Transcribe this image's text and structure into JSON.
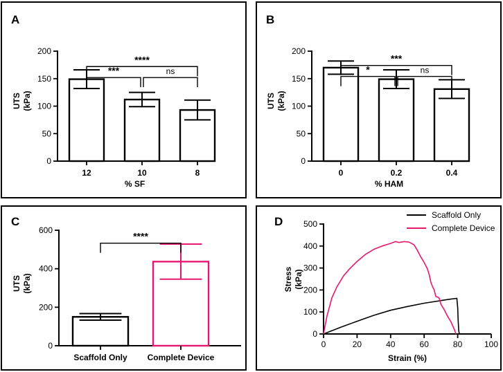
{
  "chart_data": [
    {
      "panel": "A",
      "type": "bar",
      "categories": [
        "12",
        "10",
        "8"
      ],
      "values": [
        149,
        112,
        93
      ],
      "errors": [
        17,
        13,
        18
      ],
      "xlabel": "% SF",
      "ylabel": [
        "UTS",
        "(kPa)"
      ],
      "ylim": [
        0,
        200
      ],
      "yticks": [
        0,
        50,
        100,
        150,
        200
      ],
      "color": "#000000",
      "significance": [
        {
          "from": 0,
          "to": 2,
          "label": "****",
          "y": 172
        },
        {
          "from": 0,
          "to": 1,
          "label": "***",
          "y": 152
        },
        {
          "from": 1,
          "to": 2,
          "label": "ns",
          "y": 152
        }
      ]
    },
    {
      "panel": "B",
      "type": "bar",
      "categories": [
        "0",
        "0.2",
        "0.4"
      ],
      "values": [
        170,
        149,
        131
      ],
      "errors": [
        12,
        17,
        17
      ],
      "xlabel": "% HAM",
      "ylabel": [
        "UTS",
        "(kPa)"
      ],
      "ylim": [
        0,
        200
      ],
      "yticks": [
        0,
        50,
        100,
        150,
        200
      ],
      "color": "#000000",
      "significance": [
        {
          "from": 0,
          "to": 2,
          "label": "***",
          "y": 174
        },
        {
          "from": 0,
          "to": 1,
          "label": "*",
          "y": 154
        },
        {
          "from": 1,
          "to": 2,
          "label": "ns",
          "y": 154
        }
      ]
    },
    {
      "panel": "C",
      "type": "bar",
      "categories": [
        "Scaffold Only",
        "Complete Device"
      ],
      "values": [
        150,
        437
      ],
      "errors": [
        17,
        91
      ],
      "colors": [
        "#000000",
        "#e6176f"
      ],
      "xlabel": "",
      "ylabel": [
        "UTS",
        "(kPa)"
      ],
      "ylim": [
        0,
        600
      ],
      "yticks": [
        0,
        200,
        400,
        600
      ],
      "significance": [
        {
          "from": 0,
          "to": 1,
          "label": "****",
          "y": 533
        }
      ]
    },
    {
      "panel": "D",
      "type": "line",
      "xlabel": "Strain (%)",
      "ylabel": [
        "Stress",
        "(kPa)"
      ],
      "xlim": [
        0,
        100
      ],
      "ylim": [
        0,
        500
      ],
      "xticks": [
        0,
        20,
        40,
        60,
        80,
        100
      ],
      "yticks": [
        0,
        100,
        200,
        300,
        400,
        500
      ],
      "legend_position": "top-right",
      "series": [
        {
          "name": "Scaffold Only",
          "color": "#000000",
          "x": [
            0,
            10,
            20,
            30,
            40,
            50,
            60,
            70,
            75,
            79.5,
            80,
            80.3,
            80.6,
            81
          ],
          "y": [
            0,
            30,
            58,
            85,
            108,
            125,
            140,
            152,
            158,
            162,
            120,
            60,
            15,
            0
          ]
        },
        {
          "name": "Complete Device",
          "color": "#e6176f",
          "x": [
            0,
            2,
            5,
            8,
            12,
            16,
            20,
            25,
            30,
            35,
            40,
            43,
            45,
            48,
            51,
            54,
            56,
            58,
            60,
            62,
            63,
            64,
            65,
            66,
            67,
            68,
            69,
            70,
            72,
            74,
            76,
            78,
            79
          ],
          "y": [
            0,
            80,
            165,
            215,
            265,
            300,
            330,
            362,
            385,
            400,
            412,
            420,
            416,
            420,
            418,
            405,
            380,
            350,
            325,
            295,
            270,
            235,
            215,
            200,
            170,
            168,
            162,
            135,
            110,
            80,
            55,
            20,
            0
          ]
        }
      ]
    }
  ]
}
